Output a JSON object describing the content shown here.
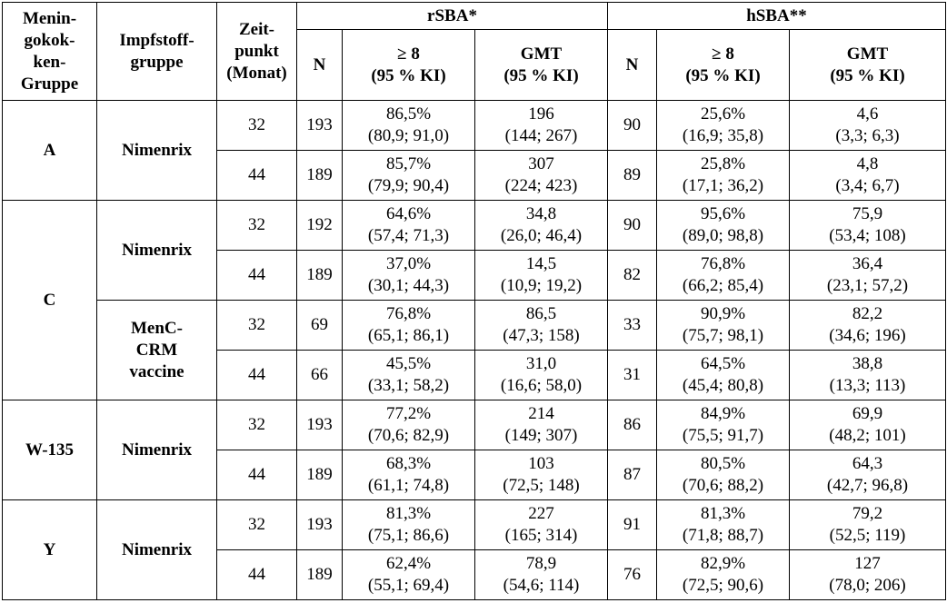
{
  "header": {
    "group": [
      "Menin-",
      "gokok-",
      "ken-",
      "Gruppe"
    ],
    "vaccine_group": [
      "Impfstoff-",
      "gruppe"
    ],
    "timepoint": [
      "Zeit-",
      "punkt",
      "(Monat)"
    ],
    "rsba": "rSBA*",
    "hsba": "hSBA**",
    "n": "N",
    "ge8": [
      "≥ 8",
      "(95 % KI)"
    ],
    "gmt": [
      "GMT",
      "(95 % KI)"
    ]
  },
  "groups": {
    "A": "A",
    "C": "C",
    "W": "W-135",
    "Y": "Y",
    "nimenrix": "Nimenrix",
    "menc": [
      "MenC-",
      "CRM",
      "vaccine"
    ]
  },
  "rows": [
    {
      "t": "32",
      "rn": "193",
      "rp": [
        "86,5%",
        "(80,9; 91,0)"
      ],
      "rg": [
        "196",
        "(144; 267)"
      ],
      "hn": "90",
      "hp": [
        "25,6%",
        "(16,9; 35,8)"
      ],
      "hg": [
        "4,6",
        "(3,3; 6,3)"
      ]
    },
    {
      "t": "44",
      "rn": "189",
      "rp": [
        "85,7%",
        "(79,9; 90,4)"
      ],
      "rg": [
        "307",
        "(224; 423)"
      ],
      "hn": "89",
      "hp": [
        "25,8%",
        "(17,1; 36,2)"
      ],
      "hg": [
        "4,8",
        "(3,4; 6,7)"
      ]
    },
    {
      "t": "32",
      "rn": "192",
      "rp": [
        "64,6%",
        "(57,4; 71,3)"
      ],
      "rg": [
        "34,8",
        "(26,0; 46,4)"
      ],
      "hn": "90",
      "hp": [
        "95,6%",
        "(89,0; 98,8)"
      ],
      "hg": [
        "75,9",
        "(53,4; 108)"
      ]
    },
    {
      "t": "44",
      "rn": "189",
      "rp": [
        "37,0%",
        "(30,1; 44,3)"
      ],
      "rg": [
        "14,5",
        "(10,9; 19,2)"
      ],
      "hn": "82",
      "hp": [
        "76,8%",
        "(66,2; 85,4)"
      ],
      "hg": [
        "36,4",
        "(23,1; 57,2)"
      ]
    },
    {
      "t": "32",
      "rn": "69",
      "rp": [
        "76,8%",
        "(65,1; 86,1)"
      ],
      "rg": [
        "86,5",
        "(47,3; 158)"
      ],
      "hn": "33",
      "hp": [
        "90,9%",
        "(75,7; 98,1)"
      ],
      "hg": [
        "82,2",
        "(34,6; 196)"
      ]
    },
    {
      "t": "44",
      "rn": "66",
      "rp": [
        "45,5%",
        "(33,1; 58,2)"
      ],
      "rg": [
        "31,0",
        "(16,6; 58,0)"
      ],
      "hn": "31",
      "hp": [
        "64,5%",
        "(45,4; 80,8)"
      ],
      "hg": [
        "38,8",
        "(13,3; 113)"
      ]
    },
    {
      "t": "32",
      "rn": "193",
      "rp": [
        "77,2%",
        "(70,6; 82,9)"
      ],
      "rg": [
        "214",
        "(149; 307)"
      ],
      "hn": "86",
      "hp": [
        "84,9%",
        "(75,5; 91,7)"
      ],
      "hg": [
        "69,9",
        "(48,2; 101)"
      ]
    },
    {
      "t": "44",
      "rn": "189",
      "rp": [
        "68,3%",
        "(61,1; 74,8)"
      ],
      "rg": [
        "103",
        "(72,5; 148)"
      ],
      "hn": "87",
      "hp": [
        "80,5%",
        "(70,6; 88,2)"
      ],
      "hg": [
        "64,3",
        "(42,7; 96,8)"
      ]
    },
    {
      "t": "32",
      "rn": "193",
      "rp": [
        "81,3%",
        "(75,1; 86,6)"
      ],
      "rg": [
        "227",
        "(165; 314)"
      ],
      "hn": "91",
      "hp": [
        "81,3%",
        "(71,8; 88,7)"
      ],
      "hg": [
        "79,2",
        "(52,5; 119)"
      ]
    },
    {
      "t": "44",
      "rn": "189",
      "rp": [
        "62,4%",
        "(55,1; 69,4)"
      ],
      "rg": [
        "78,9",
        "(54,6; 114)"
      ],
      "hn": "76",
      "hp": [
        "82,9%",
        "(72,5; 90,6)"
      ],
      "hg": [
        "127",
        "(78,0; 206)"
      ]
    }
  ]
}
